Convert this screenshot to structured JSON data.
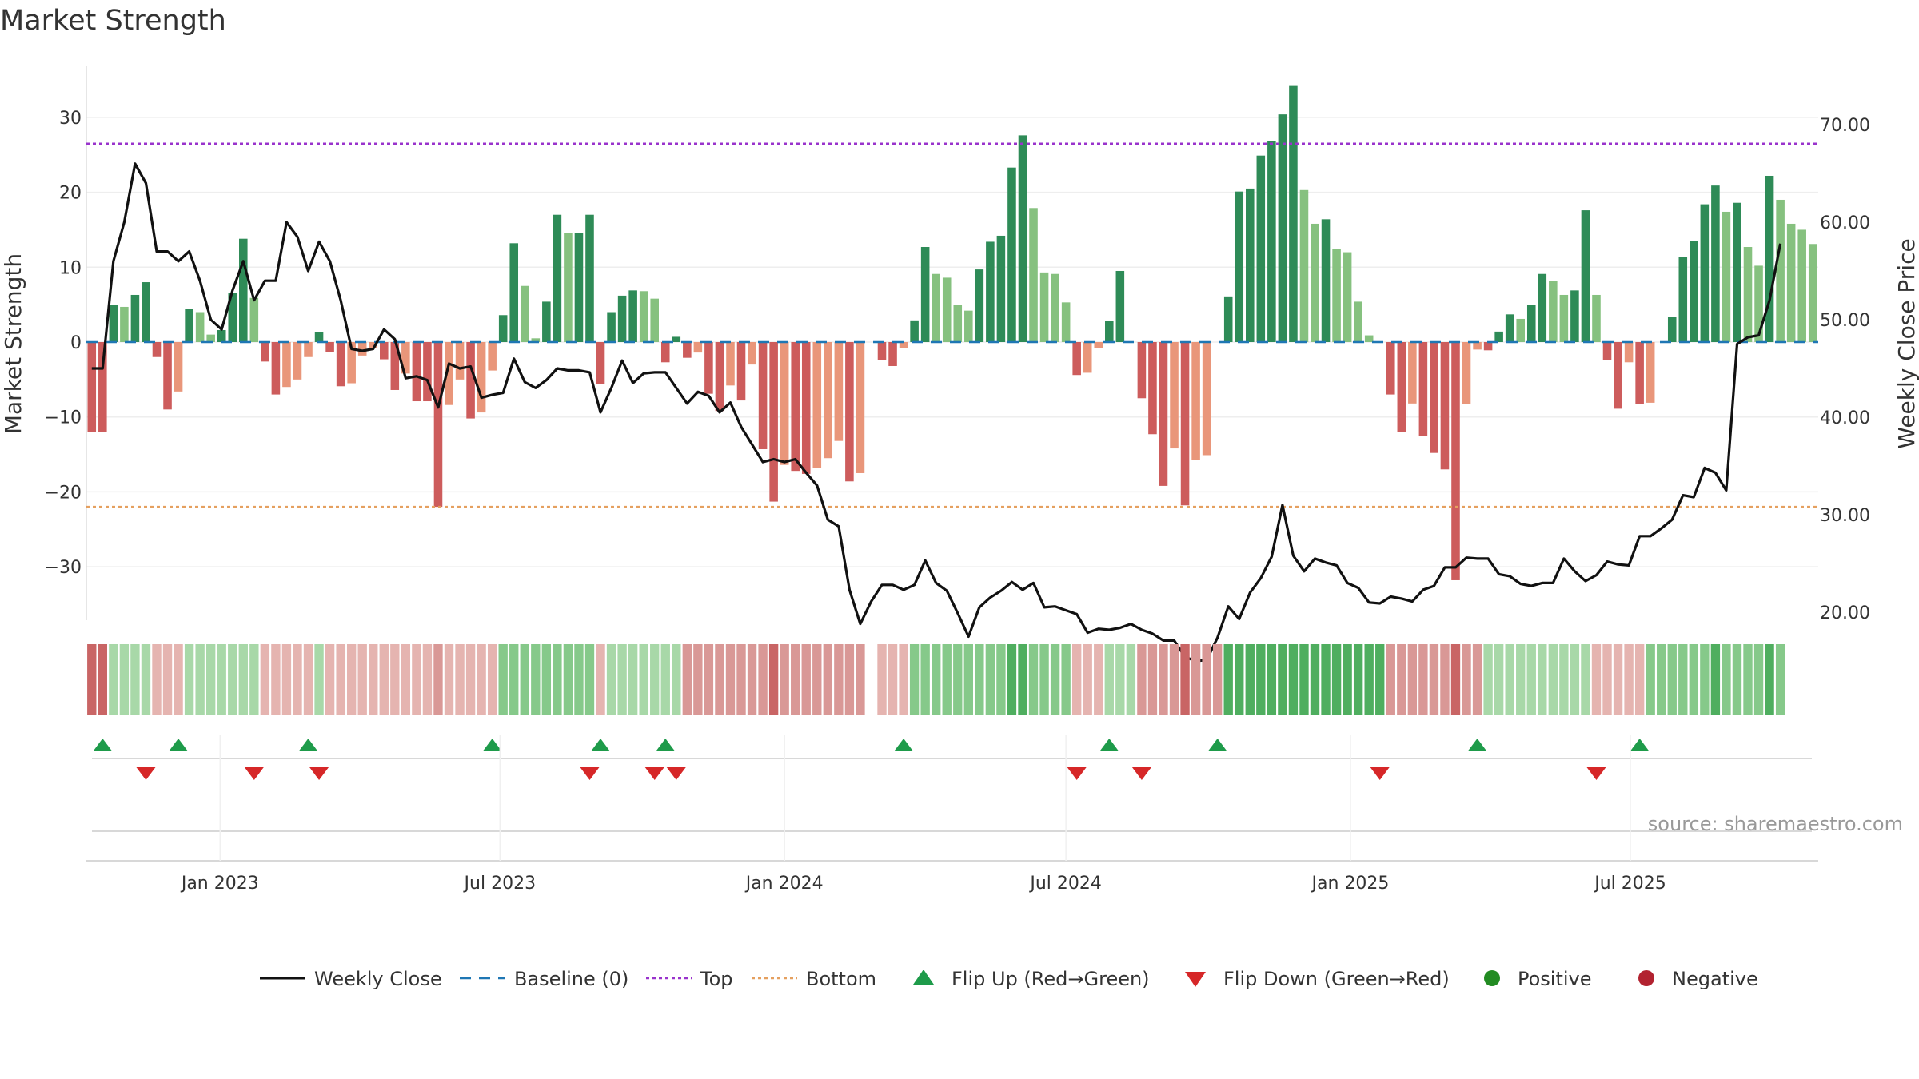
{
  "title": "Market Strength",
  "source": "source: sharemaestro.com",
  "colors": {
    "positive_strong": "#2e8b57",
    "positive_weak": "#86c17f",
    "negative_strong": "#cd5c5c",
    "negative_weak": "#e9967a",
    "price_line": "#111111",
    "baseline": "#1f77b4",
    "top": "#9933cc",
    "bottom": "#e5a05f",
    "flip_up": "#1e9b4a",
    "flip_down": "#d62728",
    "positive_dot": "#228b22",
    "negative_dot": "#b22230"
  },
  "chart_data": {
    "type": "bar",
    "ylabel_left": "Market Strength",
    "ylabel_right": "Weekly Close Price",
    "ylim_left": [
      -37,
      37
    ],
    "yticks_left": [
      30,
      20,
      10,
      0,
      -10,
      -20,
      -30
    ],
    "ytick_labels_left": [
      "30",
      "20",
      "10",
      "0",
      "−10",
      "−20",
      "−30"
    ],
    "ylim_right": [
      10,
      70
    ],
    "yticks_right": [
      70,
      60,
      50,
      40,
      30,
      20
    ],
    "ytick_labels_right": [
      "70.00",
      "60.00",
      "50.00",
      "40.00",
      "30.00",
      "20.00"
    ],
    "top_level": 26.5,
    "bottom_level": -22,
    "baseline": 0,
    "x_start": "2022-10-10",
    "x_interval_days": 7,
    "x_ticks": [
      {
        "date": "2023-01-01",
        "label": "Jan 2023"
      },
      {
        "date": "2023-07-01",
        "label": "Jul 2023"
      },
      {
        "date": "2024-01-01",
        "label": "Jan 2024"
      },
      {
        "date": "2024-07-01",
        "label": "Jul 2024"
      },
      {
        "date": "2025-01-01",
        "label": "Jan 2025"
      },
      {
        "date": "2025-07-01",
        "label": "Jul 2025"
      }
    ],
    "strength": [
      -12,
      -12,
      5,
      4.7,
      6.3,
      8,
      -2,
      -9,
      -6.6,
      4.4,
      4,
      1,
      1.6,
      6.6,
      13.8,
      5.9,
      -2.6,
      -7,
      -6,
      -5,
      -2,
      1.3,
      -1.3,
      -5.9,
      -5.5,
      -1.8,
      -0.8,
      -2.3,
      -6.4,
      -4.2,
      -7.9,
      -7.9,
      -22,
      -8.4,
      -5,
      -10.2,
      -9.4,
      -3.8,
      3.6,
      13.2,
      7.5,
      0.5,
      5.4,
      17,
      14.6,
      14.6,
      17,
      -5.6,
      4,
      6.2,
      6.9,
      6.8,
      5.8,
      -2.7,
      0.7,
      -2.1,
      -1.4,
      -6.9,
      -9.2,
      -5.8,
      -7.8,
      -3,
      -14.3,
      -21.3,
      -16.4,
      -17.2,
      -17.6,
      -16.8,
      -15.5,
      -13.2,
      -18.6,
      -17.5,
      0,
      -2.4,
      -3.2,
      -0.8,
      2.9,
      12.7,
      9.1,
      8.6,
      5,
      4.2,
      9.7,
      13.4,
      14.2,
      23.3,
      27.6,
      17.9,
      9.3,
      9.1,
      5.3,
      -4.4,
      -4.1,
      -0.8,
      2.8,
      9.5,
      0,
      -7.5,
      -12.3,
      -19.2,
      -14.2,
      -21.8,
      -15.7,
      -15.1,
      0,
      6.1,
      20.1,
      20.5,
      24.9,
      26.8,
      30.4,
      34.3,
      20.3,
      15.8,
      16.4,
      12.4,
      12,
      5.4,
      0.9,
      0,
      -7,
      -12,
      -8.2,
      -12.5,
      -14.8,
      -17,
      -31.8,
      -8.3,
      -1,
      -1.1,
      1.4,
      3.7,
      3.1,
      5,
      9.1,
      8.2,
      6.3,
      6.9,
      17.6,
      6.3,
      -2.4,
      -8.9,
      -2.7,
      -8.3,
      -8.1,
      0,
      3.4,
      11.4,
      13.5,
      18.4,
      20.9,
      17.4,
      18.6,
      12.7,
      10.2,
      22.2,
      19,
      15.8,
      15,
      13.1
    ],
    "close": [
      45,
      45,
      56,
      60,
      66,
      64,
      57,
      57,
      56,
      57,
      54,
      50,
      49,
      53,
      56,
      52,
      54,
      54,
      60,
      58.5,
      55,
      58,
      56,
      52,
      47,
      46.8,
      47,
      49,
      48,
      44,
      44.2,
      43.8,
      41,
      45.5,
      45,
      45.2,
      42,
      42.3,
      42.5,
      46,
      43.6,
      43,
      43.8,
      45,
      44.8,
      44.8,
      44.6,
      40.5,
      43,
      45.8,
      43.5,
      44.5,
      44.6,
      44.6,
      43,
      41.4,
      42.6,
      42.2,
      40.5,
      41.5,
      39,
      37.2,
      35.4,
      35.7,
      35.4,
      35.7,
      34.3,
      33,
      29.5,
      28.8,
      22.3,
      18.8,
      21.1,
      22.8,
      22.8,
      22.3,
      22.8,
      25.3,
      23,
      22.2,
      19.9,
      17.5,
      20.5,
      21.5,
      22.2,
      23.1,
      22.3,
      23,
      20.5,
      20.6,
      20.2,
      19.8,
      17.9,
      18.3,
      18.2,
      18.4,
      18.8,
      18.2,
      17.8,
      17.1,
      17.1,
      15.4,
      15,
      15.1,
      17.4,
      20.6,
      19.3,
      22,
      23.5,
      25.7,
      31,
      25.8,
      24.2,
      25.5,
      25.1,
      24.8,
      23,
      22.5,
      21,
      20.9,
      21.6,
      21.4,
      21.1,
      22.3,
      22.7,
      24.6,
      24.6,
      25.6,
      25.5,
      25.5,
      23.9,
      23.7,
      22.9,
      22.7,
      23,
      23,
      25.5,
      24.2,
      23.2,
      23.8,
      25.2,
      24.9,
      24.8,
      27.8,
      27.8,
      28.6,
      29.5,
      32,
      31.8,
      34.8,
      34.3,
      32.5,
      47.5,
      48.2,
      48.4,
      52,
      57.8
    ]
  },
  "strip": [
    {
      "from": 0,
      "to": 1,
      "tone": "neg",
      "level": 3
    },
    {
      "from": 2,
      "to": 5,
      "tone": "pos",
      "level": 1
    },
    {
      "from": 6,
      "to": 8,
      "tone": "neg",
      "level": 1
    },
    {
      "from": 9,
      "to": 15,
      "tone": "pos",
      "level": 1
    },
    {
      "from": 16,
      "to": 20,
      "tone": "neg",
      "level": 1
    },
    {
      "from": 21,
      "to": 21,
      "tone": "pos",
      "level": 1
    },
    {
      "from": 22,
      "to": 37,
      "tone": "neg",
      "level": 1
    },
    {
      "from": 38,
      "to": 46,
      "tone": "pos",
      "level": 2
    },
    {
      "from": 47,
      "to": 47,
      "tone": "neg",
      "level": 1
    },
    {
      "from": 48,
      "to": 54,
      "tone": "pos",
      "level": 1
    },
    {
      "from": 55,
      "to": 71,
      "tone": "neg",
      "level": 2
    },
    {
      "from": 72,
      "to": 72,
      "tone": "gap",
      "level": 0
    },
    {
      "from": 73,
      "to": 75,
      "tone": "neg",
      "level": 1
    },
    {
      "from": 76,
      "to": 90,
      "tone": "pos",
      "level": 2
    },
    {
      "from": 91,
      "to": 93,
      "tone": "neg",
      "level": 1
    },
    {
      "from": 94,
      "to": 96,
      "tone": "pos",
      "level": 1
    },
    {
      "from": 97,
      "to": 104,
      "tone": "neg",
      "level": 2
    },
    {
      "from": 105,
      "to": 119,
      "tone": "pos",
      "level": 3
    },
    {
      "from": 120,
      "to": 128,
      "tone": "neg",
      "level": 2
    },
    {
      "from": 129,
      "to": 138,
      "tone": "pos",
      "level": 1
    },
    {
      "from": 139,
      "to": 143,
      "tone": "neg",
      "level": 1
    },
    {
      "from": 144,
      "to": 156,
      "tone": "pos",
      "level": 2
    }
  ],
  "flip_up_weeks": [
    1,
    8,
    20,
    37,
    47,
    53,
    75,
    94,
    104,
    128,
    143
  ],
  "flip_down_weeks": [
    5,
    15,
    21,
    46,
    52,
    54,
    91,
    97,
    119,
    139
  ],
  "legend": [
    {
      "key": "close",
      "label": "Weekly Close"
    },
    {
      "key": "baseline",
      "label": "Baseline (0)"
    },
    {
      "key": "top",
      "label": "Top"
    },
    {
      "key": "bottom",
      "label": "Bottom"
    },
    {
      "key": "flip_up",
      "label": "Flip Up (Red→Green)"
    },
    {
      "key": "flip_down",
      "label": "Flip Down (Green→Red)"
    },
    {
      "key": "positive",
      "label": "Positive"
    },
    {
      "key": "negative",
      "label": "Negative"
    }
  ]
}
